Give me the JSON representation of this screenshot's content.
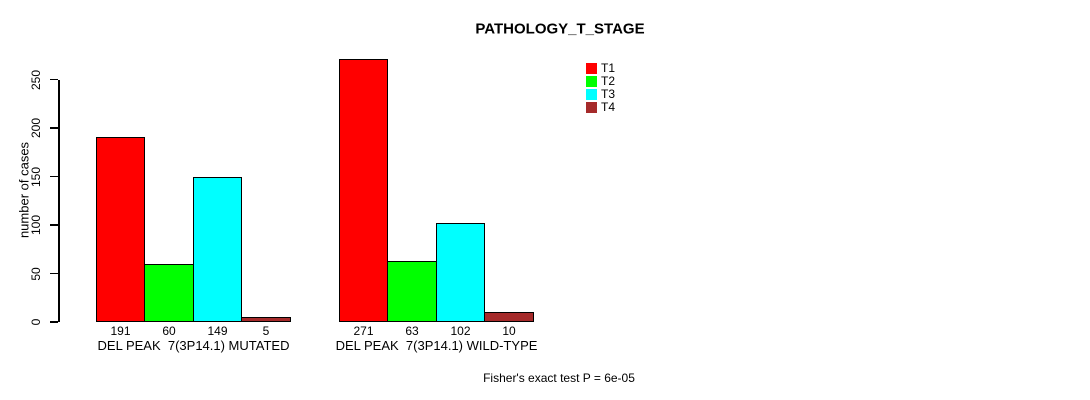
{
  "chart_data": {
    "type": "bar",
    "bar_mode": "grouped",
    "title": "PATHOLOGY_T_STAGE",
    "ylabel": "number of cases",
    "xlabel": "",
    "ylim": [
      0,
      250
    ],
    "yticks": [
      0,
      50,
      100,
      150,
      200,
      250
    ],
    "grid": false,
    "legend_position": "top-right",
    "background": "#FFFFFF",
    "axis_color": "#000000",
    "text_color": "#000000",
    "categories": [
      "DEL PEAK  7(3P14.1) MUTATED",
      "DEL PEAK  7(3P14.1) WILD-TYPE"
    ],
    "series": [
      {
        "name": "T1",
        "color": "#FF0000",
        "values": [
          191,
          271
        ]
      },
      {
        "name": "T2",
        "color": "#00FF00",
        "values": [
          60,
          63
        ]
      },
      {
        "name": "T3",
        "color": "#00FFFF",
        "values": [
          149,
          102
        ]
      },
      {
        "name": "T4",
        "color": "#A52A2A",
        "values": [
          5,
          10
        ]
      }
    ],
    "bar_value_labels": [
      [
        191,
        60,
        149,
        5
      ],
      [
        271,
        63,
        102,
        10
      ]
    ],
    "annotation": "Fisher's exact test P = 6e-05"
  }
}
